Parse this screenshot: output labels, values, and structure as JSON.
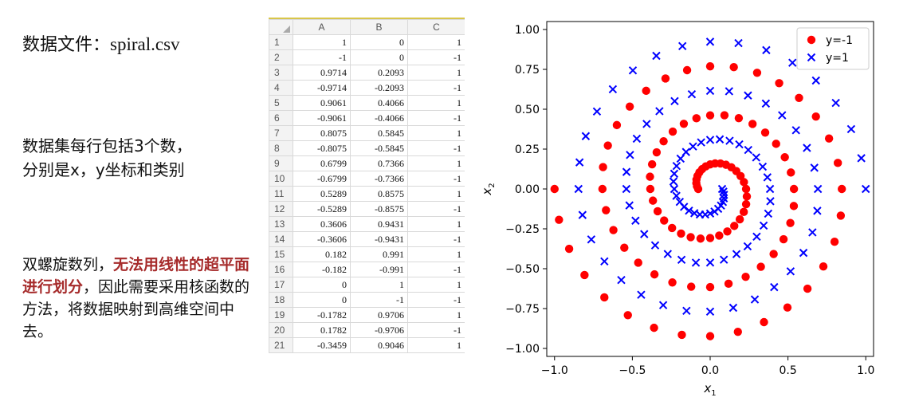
{
  "file_label": {
    "prefix": "数据文件：",
    "filename": "spiral.csv"
  },
  "description": {
    "line1": "数据集每行包括3个数，",
    "line2": "分别是x，y坐标和类别"
  },
  "note": {
    "part1": "双螺旋数列，",
    "highlight": "无法用线性的超平面进行划分",
    "part2": "，因此需要采用核函数的方法，将数据映射到高维空间中去。"
  },
  "spreadsheet": {
    "columns": [
      "A",
      "B",
      "C"
    ],
    "rows": [
      [
        "1",
        "1",
        "0",
        "1"
      ],
      [
        "2",
        "-1",
        "0",
        "-1"
      ],
      [
        "3",
        "0.9714",
        "0.2093",
        "1"
      ],
      [
        "4",
        "-0.9714",
        "-0.2093",
        "-1"
      ],
      [
        "5",
        "0.9061",
        "0.4066",
        "1"
      ],
      [
        "6",
        "-0.9061",
        "-0.4066",
        "-1"
      ],
      [
        "7",
        "0.8075",
        "0.5845",
        "1"
      ],
      [
        "8",
        "-0.8075",
        "-0.5845",
        "-1"
      ],
      [
        "9",
        "0.6799",
        "0.7366",
        "1"
      ],
      [
        "10",
        "-0.6799",
        "-0.7366",
        "-1"
      ],
      [
        "11",
        "0.5289",
        "0.8575",
        "1"
      ],
      [
        "12",
        "-0.5289",
        "-0.8575",
        "-1"
      ],
      [
        "13",
        "0.3606",
        "0.9431",
        "1"
      ],
      [
        "14",
        "-0.3606",
        "-0.9431",
        "-1"
      ],
      [
        "15",
        "0.182",
        "0.991",
        "1"
      ],
      [
        "16",
        "-0.182",
        "-0.991",
        "-1"
      ],
      [
        "17",
        "0",
        "1",
        "1"
      ],
      [
        "18",
        "0",
        "-1",
        "-1"
      ],
      [
        "19",
        "-0.1782",
        "0.9706",
        "1"
      ],
      [
        "20",
        "0.1782",
        "-0.9706",
        "-1"
      ],
      [
        "21",
        "-0.3459",
        "0.9046",
        "1"
      ]
    ]
  },
  "chart_data": {
    "type": "scatter",
    "xlabel": "x1",
    "ylabel": "x2",
    "xlim": [
      -1.05,
      1.05
    ],
    "ylim": [
      -1.05,
      1.05
    ],
    "xticks": [
      "−1.0",
      "−0.5",
      "0.0",
      "0.5",
      "1.0"
    ],
    "yticks": [
      "1.00",
      "0.75",
      "0.50",
      "0.25",
      "0.00",
      "−0.25",
      "−0.50",
      "−0.75",
      "−1.00"
    ],
    "ytick_values": [
      1.0,
      0.75,
      0.5,
      0.25,
      0.0,
      -0.25,
      -0.5,
      -0.75,
      -1.0
    ],
    "xtick_values": [
      -1.0,
      -0.5,
      0.0,
      0.5,
      1.0
    ],
    "legend_position": "top-right",
    "series": [
      {
        "name": "y=-1",
        "marker": "circle",
        "color": "#ff0000",
        "note": "spiral points r=t/(n), angle=pi+3.5*pi*t"
      },
      {
        "name": "y=1",
        "marker": "x",
        "color": "#0000ff"
      }
    ],
    "points_per_series": 97
  }
}
